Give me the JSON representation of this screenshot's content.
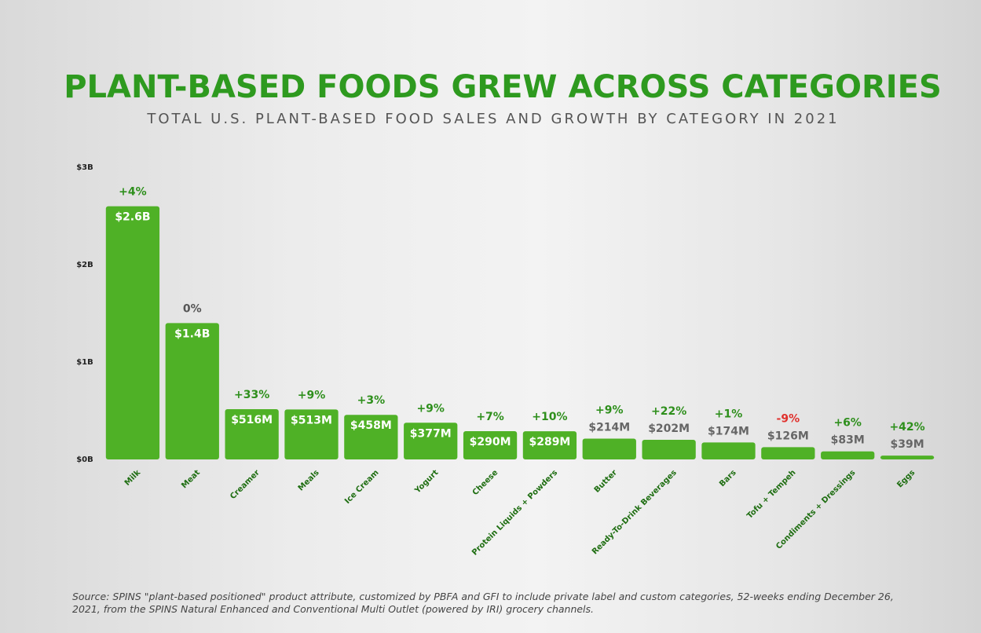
{
  "chart_data": {
    "type": "bar",
    "title": "PLANT-BASED FOODS GREW ACROSS CATEGORIES",
    "subtitle": "TOTAL U.S. PLANT-BASED FOOD SALES AND GROWTH BY CATEGORY IN 2021",
    "categories": [
      "Milk",
      "Meat",
      "Creamer",
      "Meals",
      "Ice Cream",
      "Yogurt",
      "Cheese",
      "Protein Liquids + Powders",
      "Butter",
      "Ready-To-Drink Beverages",
      "Bars",
      "Tofu + Tempeh",
      "Condiments + Dressings",
      "Eggs"
    ],
    "values": [
      2600000000,
      1400000000,
      516000000,
      513000000,
      458000000,
      377000000,
      290000000,
      289000000,
      214000000,
      202000000,
      174000000,
      126000000,
      83000000,
      39000000
    ],
    "value_labels": [
      "$2.6B",
      "$1.4B",
      "$516M",
      "$513M",
      "$458M",
      "$377M",
      "$290M",
      "$289M",
      "$214M",
      "$202M",
      "$174M",
      "$126M",
      "$83M",
      "$39M"
    ],
    "growth_labels": [
      "+4%",
      "0%",
      "+33%",
      "+9%",
      "+3%",
      "+9%",
      "+7%",
      "+10%",
      "+9%",
      "+22%",
      "+1%",
      "-9%",
      "+6%",
      "+42%"
    ],
    "color": "#4fb126",
    "growth_color": "#2e8f1c",
    "zero_growth_color": "#555555",
    "negative_growth_color": "#e0302c",
    "ylim": [
      0,
      3000000000
    ],
    "yticks": [
      {
        "value": 0,
        "label": "$0B"
      },
      {
        "value": 1000000000,
        "label": "$1B"
      },
      {
        "value": 2000000000,
        "label": "$2B"
      },
      {
        "value": 3000000000,
        "label": "$3B"
      }
    ],
    "grid": false,
    "source": "Source: SPINS \"plant-based positioned\" product attribute, customized by PBFA and GFI to include private label and custom categories, 52-weeks ending December 26, 2021, from the SPINS Natural Enhanced and Conventional Multi Outlet (powered by IRI) grocery channels."
  }
}
